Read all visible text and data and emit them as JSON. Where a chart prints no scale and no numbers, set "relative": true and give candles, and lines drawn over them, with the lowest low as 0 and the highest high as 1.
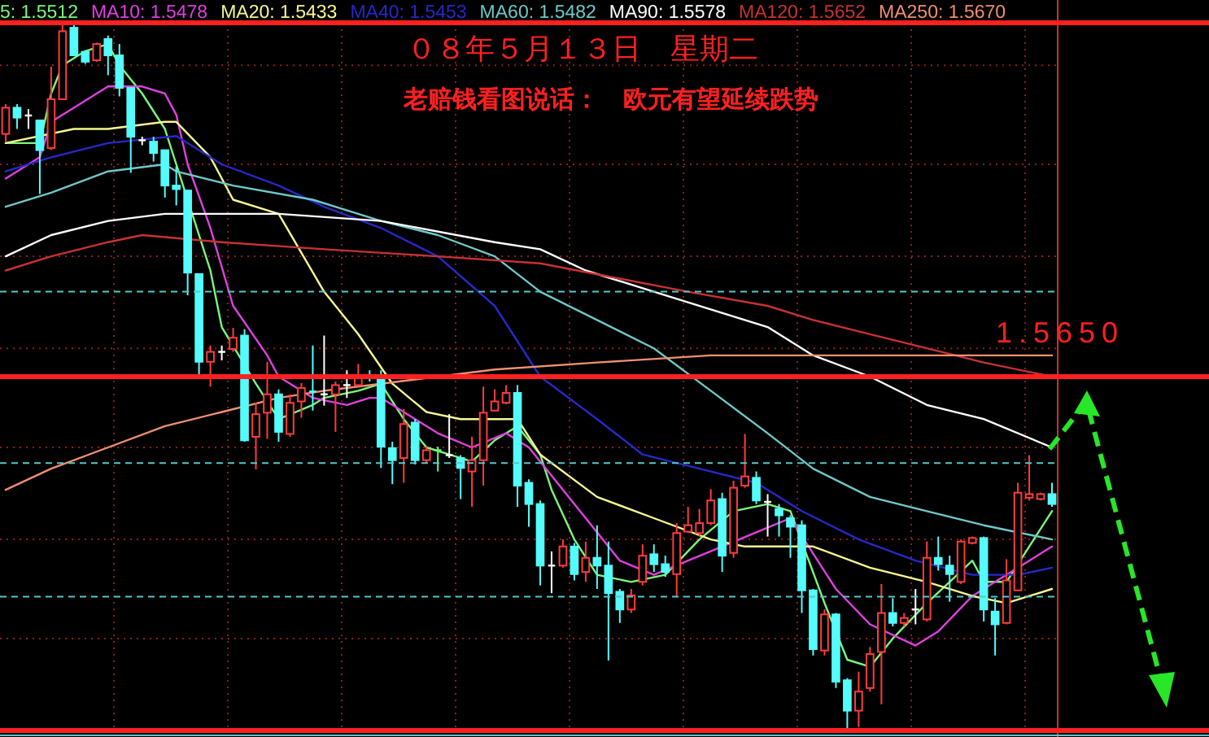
{
  "chart_data": {
    "type": "candlestick",
    "relative": true,
    "title": "０８年５月１３日　星期二",
    "subtitle": "老赔钱看图说话：　欧元有望延续跌势",
    "legend": "top",
    "grid": true,
    "categories": [
      null,
      null,
      null,
      null,
      null,
      null,
      null,
      null,
      null,
      null,
      null,
      null,
      null,
      null,
      null,
      null,
      null,
      null,
      null,
      null,
      null,
      null,
      null,
      null,
      null,
      null,
      null,
      null,
      null,
      null,
      null,
      null,
      null,
      null,
      null,
      null,
      null,
      null,
      null,
      null,
      null,
      null,
      null,
      null,
      null,
      null,
      null,
      null,
      null,
      null,
      null,
      null,
      null,
      null,
      null,
      null,
      null,
      null,
      null,
      null,
      null,
      null,
      null,
      null,
      null,
      null,
      null,
      null,
      null,
      null,
      null,
      null,
      null,
      null,
      null,
      null,
      null,
      null,
      null,
      null,
      null,
      null,
      null,
      null,
      null,
      null,
      null,
      null,
      null,
      null,
      null,
      null,
      null
    ],
    "ohlc": [
      [
        0.843,
        0.885,
        0.832,
        0.88
      ],
      [
        0.88,
        0.885,
        0.85,
        0.866
      ],
      [
        0.869,
        0.878,
        0.85,
        0.869
      ],
      [
        0.862,
        0.862,
        0.758,
        0.82
      ],
      [
        0.823,
        0.938,
        0.82,
        0.892
      ],
      [
        0.892,
        1.0,
        0.892,
        0.988
      ],
      [
        0.993,
        1.0,
        0.954,
        0.954
      ],
      [
        0.959,
        0.961,
        0.942,
        0.945
      ],
      [
        0.947,
        0.972,
        0.945,
        0.97
      ],
      [
        0.977,
        0.982,
        0.926,
        0.954
      ],
      [
        0.954,
        0.97,
        0.896,
        0.908
      ],
      [
        0.908,
        0.908,
        0.788,
        0.839
      ],
      [
        0.834,
        0.839,
        0.827,
        0.834
      ],
      [
        0.832,
        0.839,
        0.804,
        0.816
      ],
      [
        0.82,
        0.82,
        0.753,
        0.77
      ],
      [
        0.77,
        0.797,
        0.742,
        0.765
      ],
      [
        0.763,
        0.763,
        0.615,
        0.647
      ],
      [
        0.645,
        0.645,
        0.498,
        0.521
      ],
      [
        0.521,
        0.544,
        0.486,
        0.535
      ],
      [
        0.535,
        0.544,
        0.523,
        0.535
      ],
      [
        0.539,
        0.569,
        0.535,
        0.555
      ],
      [
        0.558,
        0.567,
        0.408,
        0.41
      ],
      [
        0.415,
        0.463,
        0.369,
        0.447
      ],
      [
        0.449,
        0.521,
        0.412,
        0.475
      ],
      [
        0.475,
        0.482,
        0.408,
        0.422
      ],
      [
        0.419,
        0.475,
        0.415,
        0.463
      ],
      [
        0.465,
        0.491,
        0.442,
        0.484
      ],
      [
        0.479,
        0.544,
        0.452,
        0.479
      ],
      [
        0.475,
        0.558,
        0.459,
        0.475
      ],
      [
        0.475,
        0.493,
        0.422,
        0.488
      ],
      [
        0.488,
        0.509,
        0.47,
        0.488
      ],
      [
        0.488,
        0.518,
        0.486,
        0.5
      ],
      [
        0.5,
        0.509,
        0.493,
        0.5
      ],
      [
        0.5,
        0.509,
        0.371,
        0.401
      ],
      [
        0.399,
        0.408,
        0.348,
        0.382
      ],
      [
        0.385,
        0.454,
        0.35,
        0.433
      ],
      [
        0.435,
        0.44,
        0.376,
        0.382
      ],
      [
        0.382,
        0.401,
        0.378,
        0.396
      ],
      [
        0.396,
        0.401,
        0.366,
        0.396
      ],
      [
        0.389,
        0.447,
        0.385,
        0.389
      ],
      [
        0.385,
        0.389,
        0.327,
        0.371
      ],
      [
        0.366,
        0.415,
        0.316,
        0.382
      ],
      [
        0.382,
        0.486,
        0.346,
        0.449
      ],
      [
        0.452,
        0.482,
        0.452,
        0.465
      ],
      [
        0.463,
        0.488,
        0.461,
        0.477
      ],
      [
        0.477,
        0.488,
        0.316,
        0.346
      ],
      [
        0.35,
        0.355,
        0.288,
        0.32
      ],
      [
        0.32,
        0.325,
        0.205,
        0.233
      ],
      [
        0.233,
        0.253,
        0.194,
        0.233
      ],
      [
        0.233,
        0.27,
        0.23,
        0.26
      ],
      [
        0.26,
        0.265,
        0.212,
        0.221
      ],
      [
        0.224,
        0.267,
        0.21,
        0.244
      ],
      [
        0.244,
        0.29,
        0.2,
        0.233
      ],
      [
        0.233,
        0.267,
        0.099,
        0.194
      ],
      [
        0.196,
        0.2,
        0.152,
        0.171
      ],
      [
        0.171,
        0.2,
        0.166,
        0.191
      ],
      [
        0.21,
        0.263,
        0.205,
        0.247
      ],
      [
        0.249,
        0.263,
        0.224,
        0.235
      ],
      [
        0.235,
        0.247,
        0.217,
        0.224
      ],
      [
        0.221,
        0.293,
        0.189,
        0.279
      ],
      [
        0.281,
        0.316,
        0.279,
        0.29
      ],
      [
        0.279,
        0.313,
        0.274,
        0.293
      ],
      [
        0.293,
        0.341,
        0.29,
        0.325
      ],
      [
        0.327,
        0.336,
        0.224,
        0.247
      ],
      [
        0.251,
        0.353,
        0.244,
        0.343
      ],
      [
        0.346,
        0.419,
        0.343,
        0.359
      ],
      [
        0.357,
        0.366,
        0.32,
        0.325
      ],
      [
        0.323,
        0.334,
        0.274,
        0.323
      ],
      [
        0.313,
        0.32,
        0.274,
        0.304
      ],
      [
        0.3,
        0.304,
        0.244,
        0.288
      ],
      [
        0.29,
        0.297,
        0.166,
        0.198
      ],
      [
        0.198,
        0.2,
        0.106,
        0.115
      ],
      [
        0.113,
        0.171,
        0.106,
        0.164
      ],
      [
        0.164,
        0.166,
        0.06,
        0.069
      ],
      [
        0.071,
        0.074,
        0.0,
        0.028
      ],
      [
        0.028,
        0.083,
        0.005,
        0.055
      ],
      [
        0.06,
        0.118,
        0.055,
        0.108
      ],
      [
        0.111,
        0.207,
        0.037,
        0.166
      ],
      [
        0.166,
        0.187,
        0.147,
        0.152
      ],
      [
        0.152,
        0.166,
        0.147,
        0.159
      ],
      [
        0.171,
        0.2,
        0.15,
        0.171
      ],
      [
        0.157,
        0.267,
        0.154,
        0.244
      ],
      [
        0.244,
        0.274,
        0.226,
        0.235
      ],
      [
        0.233,
        0.247,
        0.182,
        0.221
      ],
      [
        0.21,
        0.27,
        0.207,
        0.267
      ],
      [
        0.265,
        0.274,
        0.263,
        0.272
      ],
      [
        0.272,
        0.274,
        0.154,
        0.171
      ],
      [
        0.168,
        0.187,
        0.106,
        0.15
      ],
      [
        0.152,
        0.242,
        0.15,
        0.212
      ],
      [
        0.198,
        0.35,
        0.198,
        0.336
      ],
      [
        0.329,
        0.389,
        0.325,
        0.334
      ],
      [
        0.327,
        0.336,
        0.325,
        0.334
      ],
      [
        0.334,
        0.35,
        0.316,
        0.32
      ]
    ],
    "colors": [
      "#ff3c3c",
      "#54fcfc",
      "#ffffff",
      "#54fcfc",
      "#ff3c3c",
      "#ff3c3c",
      "#54fcfc",
      "#54fcfc",
      "#ff3c3c",
      "#54fcfc",
      "#54fcfc",
      "#54fcfc",
      "#ffffff",
      "#54fcfc",
      "#54fcfc",
      "#54fcfc",
      "#54fcfc",
      "#54fcfc",
      "#ff3c3c",
      "#ffffff",
      "#ff3c3c",
      "#54fcfc",
      "#ff3c3c",
      "#ff3c3c",
      "#54fcfc",
      "#ff3c3c",
      "#ff3c3c",
      "#54fcfc",
      "#ffffff",
      "#ff3c3c",
      "#ffffff",
      "#ff3c3c",
      "#54fcfc",
      "#54fcfc",
      "#54fcfc",
      "#ff3c3c",
      "#54fcfc",
      "#ff3c3c",
      "#66ff66",
      "#ffffff",
      "#54fcfc",
      "#ff3c3c",
      "#ff3c3c",
      "#ff3c3c",
      "#ff3c3c",
      "#54fcfc",
      "#54fcfc",
      "#54fcfc",
      "#ffffff",
      "#ff3c3c",
      "#54fcfc",
      "#ff3c3c",
      "#54fcfc",
      "#54fcfc",
      "#54fcfc",
      "#ff3c3c",
      "#ff3c3c",
      "#54fcfc",
      "#54fcfc",
      "#ff3c3c",
      "#ff3c3c",
      "#ff3c3c",
      "#ff3c3c",
      "#54fcfc",
      "#ff3c3c",
      "#ff3c3c",
      "#54fcfc",
      "#ffffff",
      "#54fcfc",
      "#54fcfc",
      "#54fcfc",
      "#54fcfc",
      "#ff3c3c",
      "#54fcfc",
      "#54fcfc",
      "#ff3c3c",
      "#ff3c3c",
      "#ff3c3c",
      "#54fcfc",
      "#ff3c3c",
      "#ffffff",
      "#ff3c3c",
      "#54fcfc",
      "#54fcfc",
      "#ff3c3c",
      "#ff3c3c",
      "#54fcfc",
      "#54fcfc",
      "#ff3c3c",
      "#ff3c3c",
      "#ff3c3c",
      "#ff3c3c",
      "#54fcfc"
    ],
    "series": [
      {
        "name": "5: 1.5512",
        "type": "line",
        "color": "#7cf87c",
        "values": [
          0.83,
          null,
          null,
          0.83,
          0.9,
          0.94,
          null,
          0.96,
          null,
          0.97,
          0.94,
          null,
          0.9,
          null,
          0.85,
          0.8,
          null,
          null,
          0.65,
          0.57,
          null,
          null,
          0.49,
          null,
          0.44,
          null,
          null,
          0.46,
          0.47,
          null,
          null,
          0.48,
          null,
          0.49,
          null,
          0.44,
          null,
          0.4,
          null,
          0.39,
          null,
          0.38,
          null,
          0.41,
          null,
          0.43,
          null,
          0.39,
          0.34,
          null,
          0.27,
          null,
          0.22,
          null,
          null,
          0.21,
          null,
          null,
          0.22,
          null,
          null,
          0.27,
          null,
          null,
          0.31,
          null,
          null,
          0.32,
          null,
          0.31,
          null,
          null,
          0.18,
          null,
          0.1,
          null,
          0.09,
          null,
          0.13,
          null,
          null,
          0.18,
          null,
          0.21,
          null,
          0.24,
          0.21,
          null,
          0.21,
          null,
          0.26,
          null,
          0.31
        ]
      },
      {
        "name": "MA10: 1.5478",
        "type": "line",
        "color": "#e040e0",
        "values": [
          0.78,
          null,
          null,
          0.81,
          0.86,
          null,
          null,
          0.89,
          null,
          0.91,
          null,
          null,
          0.91,
          null,
          0.9,
          0.87,
          0.8,
          null,
          0.71,
          null,
          0.6,
          null,
          null,
          0.53,
          0.5,
          null,
          null,
          0.47,
          null,
          null,
          0.46,
          null,
          0.47,
          0.47,
          null,
          null,
          0.44,
          null,
          0.42,
          null,
          null,
          0.4,
          null,
          null,
          0.42,
          null,
          0.4,
          null,
          0.36,
          null,
          null,
          0.3,
          null,
          null,
          0.24,
          null,
          null,
          0.22,
          null,
          null,
          0.24,
          null,
          null,
          0.26,
          null,
          null,
          0.28,
          null,
          null,
          0.3,
          null,
          null,
          null,
          0.2,
          null,
          null,
          0.15,
          null,
          null,
          null,
          0.12,
          null,
          0.14,
          null,
          null,
          0.19,
          null,
          0.21,
          null,
          null,
          0.24,
          null,
          0.26
        ]
      },
      {
        "name": "MA20: 1.5433",
        "type": "line",
        "color": "#f8f890",
        "values": [
          0.83,
          null,
          null,
          null,
          null,
          null,
          0.85,
          null,
          null,
          0.85,
          null,
          null,
          null,
          null,
          0.86,
          0.86,
          null,
          null,
          0.81,
          null,
          0.75,
          null,
          null,
          null,
          0.73,
          null,
          null,
          null,
          0.62,
          null,
          null,
          0.56,
          null,
          null,
          0.49,
          null,
          null,
          0.45,
          null,
          null,
          0.44,
          null,
          null,
          0.44,
          null,
          0.44,
          null,
          0.39,
          null,
          null,
          null,
          null,
          0.33,
          null,
          null,
          null,
          null,
          0.3,
          null,
          null,
          null,
          null,
          0.27,
          null,
          null,
          0.26,
          null,
          null,
          null,
          0.26,
          null,
          0.26,
          null,
          null,
          null,
          null,
          0.23,
          null,
          null,
          null,
          null,
          0.21,
          null,
          null,
          null,
          0.19,
          null,
          null,
          0.18,
          null,
          null,
          null,
          0.2
        ]
      },
      {
        "name": "MA40: 1.5453",
        "type": "line",
        "color": "#2828c8",
        "values": [
          0.79,
          null,
          null,
          null,
          0.81,
          null,
          null,
          null,
          null,
          0.83,
          null,
          null,
          null,
          null,
          null,
          0.84,
          null,
          null,
          null,
          0.8,
          null,
          null,
          null,
          null,
          0.77,
          null,
          null,
          null,
          0.74,
          null,
          null,
          null,
          null,
          0.71,
          null,
          null,
          null,
          null,
          0.67,
          null,
          null,
          null,
          null,
          0.6,
          null,
          null,
          null,
          0.5,
          null,
          null,
          null,
          null,
          0.44,
          null,
          null,
          null,
          0.39,
          null,
          null,
          null,
          null,
          0.37,
          null,
          null,
          null,
          null,
          0.35,
          null,
          null,
          null,
          0.31,
          null,
          null,
          null,
          null,
          0.27,
          null,
          null,
          null,
          null,
          0.24,
          null,
          null,
          null,
          null,
          0.22,
          null,
          null,
          null,
          0.22,
          null,
          null,
          0.23
        ]
      },
      {
        "name": "MA60: 1.5482",
        "type": "line",
        "color": "#70c8c8",
        "values": [
          0.74,
          null,
          null,
          null,
          0.76,
          null,
          null,
          null,
          null,
          0.79,
          null,
          null,
          null,
          null,
          0.8,
          0.79,
          null,
          null,
          null,
          null,
          0.77,
          null,
          null,
          null,
          null,
          null,
          null,
          0.75,
          null,
          null,
          null,
          null,
          null,
          0.72,
          null,
          null,
          null,
          null,
          0.7,
          null,
          null,
          null,
          null,
          0.67,
          null,
          null,
          null,
          0.62,
          null,
          null,
          null,
          null,
          null,
          null,
          null,
          null,
          null,
          0.54,
          null,
          null,
          null,
          null,
          0.48,
          null,
          null,
          null,
          null,
          0.42,
          null,
          null,
          null,
          0.37,
          null,
          null,
          null,
          null,
          0.33,
          null,
          null,
          null,
          null,
          0.31,
          null,
          null,
          null,
          null,
          0.29,
          null,
          null,
          null,
          null,
          null,
          0.27
        ]
      },
      {
        "name": "MA90: 1.5578",
        "type": "line",
        "color": "#ffffff",
        "values": [
          0.67,
          null,
          null,
          null,
          0.7,
          null,
          null,
          null,
          null,
          0.72,
          null,
          null,
          null,
          null,
          0.73,
          null,
          0.73,
          null,
          null,
          null,
          null,
          null,
          null,
          null,
          0.73,
          null,
          null,
          null,
          null,
          null,
          null,
          null,
          null,
          0.72,
          null,
          null,
          null,
          null,
          null,
          null,
          null,
          null,
          null,
          0.69,
          null,
          null,
          null,
          0.68,
          null,
          null,
          null,
          0.65,
          null,
          null,
          null,
          null,
          null,
          0.62,
          null,
          null,
          null,
          null,
          null,
          null,
          null,
          null,
          null,
          0.57,
          null,
          null,
          null,
          0.53,
          null,
          null,
          null,
          null,
          0.5,
          null,
          null,
          null,
          null,
          0.46,
          null,
          null,
          null,
          null,
          0.44,
          null,
          null,
          null,
          null,
          null,
          0.4
        ]
      },
      {
        "name": "MA120: 1.5652",
        "type": "line",
        "color": "#c83232",
        "values": [
          0.65,
          null,
          null,
          null,
          0.67,
          null,
          null,
          null,
          null,
          0.69,
          null,
          null,
          0.7,
          null,
          null,
          null,
          null,
          null,
          null,
          0.69,
          null,
          null,
          null,
          null,
          null,
          null,
          null,
          null,
          0.68,
          null,
          null,
          null,
          null,
          null,
          null,
          null,
          null,
          null,
          0.67,
          null,
          null,
          null,
          null,
          null,
          null,
          null,
          null,
          0.66,
          null,
          null,
          null,
          null,
          null,
          null,
          null,
          null,
          null,
          null,
          null,
          null,
          0.62,
          null,
          null,
          null,
          null,
          null,
          null,
          0.6,
          null,
          null,
          null,
          0.58,
          null,
          null,
          null,
          null,
          0.56,
          null,
          null,
          null,
          null,
          0.54,
          null,
          null,
          null,
          null,
          0.52,
          null,
          null,
          null,
          null,
          null,
          0.5
        ]
      },
      {
        "name": "MA250: 1.5670",
        "type": "line",
        "color": "#f09070",
        "values": [
          0.34,
          null,
          null,
          null,
          0.37,
          null,
          null,
          null,
          null,
          0.4,
          null,
          null,
          null,
          null,
          0.43,
          null,
          null,
          null,
          null,
          0.45,
          null,
          null,
          null,
          null,
          0.47,
          null,
          null,
          null,
          0.48,
          null,
          null,
          null,
          null,
          0.49,
          null,
          null,
          null,
          null,
          0.5,
          null,
          null,
          null,
          null,
          0.51,
          null,
          null,
          null,
          null,
          null,
          null,
          null,
          null,
          0.52,
          null,
          null,
          null,
          null,
          null,
          null,
          null,
          null,
          null,
          0.53,
          null,
          null,
          null,
          null,
          null,
          null,
          null,
          null,
          0.53,
          null,
          null,
          null,
          null,
          null,
          null,
          null,
          null,
          null,
          0.53,
          null,
          null,
          null,
          null,
          null,
          null,
          0.53,
          null,
          null,
          null,
          0.53
        ]
      }
    ],
    "annotations": [
      "1.5650"
    ],
    "ref_lines": [
      {
        "axis": "y",
        "value": 0.5,
        "color": "#ff2020"
      },
      {
        "axis": "y",
        "value": 0.62,
        "color": "#54c8c8",
        "line_style": "dashed"
      },
      {
        "axis": "y",
        "value": 0.378,
        "color": "#54c8c8",
        "line_style": "dashed"
      },
      {
        "axis": "y",
        "value": 0.189,
        "color": "#54c8c8",
        "line_style": "dashed"
      },
      {
        "axis": "y",
        "value": 1.0,
        "color": "#ff2020"
      },
      {
        "axis": "y",
        "value": 0.0,
        "color": "#ff2020"
      }
    ]
  }
}
